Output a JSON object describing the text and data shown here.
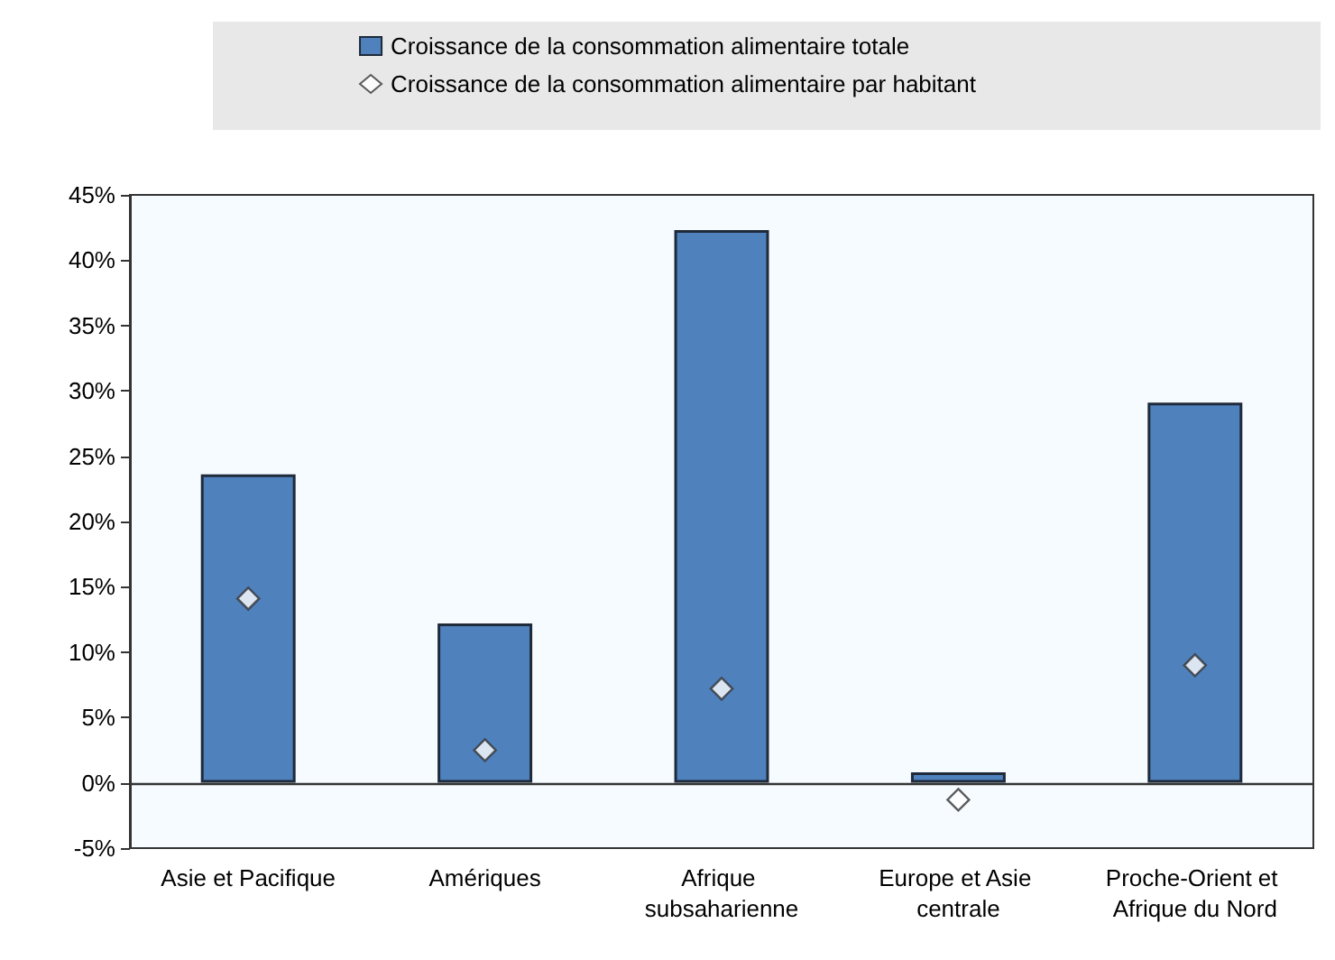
{
  "chart_data": {
    "type": "bar",
    "categories": [
      "Asie et Pacifique",
      "Amériques",
      "Afrique subsaharienne",
      "Europe et Asie centrale",
      "Proche-Orient et Afrique du Nord"
    ],
    "series": [
      {
        "name": "Croissance de la consommation alimentaire totale",
        "color": "#4f81bd",
        "values": [
          23.6,
          12.2,
          42.3,
          0.8,
          29.1
        ]
      },
      {
        "name": "Croissance de la consommation alimentaire par habitant",
        "type": "scatter",
        "color": "#ffffff",
        "marker": "diamond",
        "values": [
          14.1,
          2.5,
          7.2,
          -1.3,
          9.0
        ]
      }
    ],
    "ylim": [
      -5,
      45
    ],
    "yticks": [
      {
        "value": -5,
        "label": "-5%"
      },
      {
        "value": 0,
        "label": "0%"
      },
      {
        "value": 5,
        "label": "5%"
      },
      {
        "value": 10,
        "label": "10%"
      },
      {
        "value": 15,
        "label": "15%"
      },
      {
        "value": 20,
        "label": "20%"
      },
      {
        "value": 25,
        "label": "25%"
      },
      {
        "value": 30,
        "label": "30%"
      },
      {
        "value": 35,
        "label": "35%"
      },
      {
        "value": 40,
        "label": "40%"
      },
      {
        "value": 45,
        "label": "45%"
      }
    ],
    "legend": "top"
  }
}
